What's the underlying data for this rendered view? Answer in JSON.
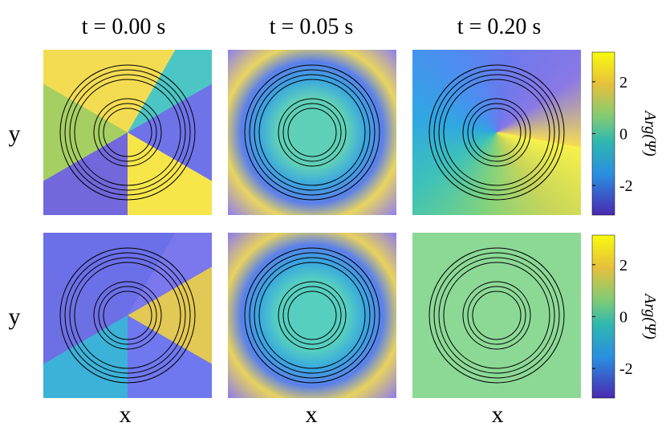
{
  "columns": [
    "t = 0.00 s",
    "t = 0.05 s",
    "t = 0.20 s"
  ],
  "ylabels": [
    "y",
    "y"
  ],
  "xlabels": [
    "x",
    "x",
    "x"
  ],
  "colorbars": [
    {
      "label": "Arg(Ψ)",
      "lim": [
        -3.14,
        3.14
      ],
      "ticks": [
        2,
        0,
        -2
      ]
    },
    {
      "label": "Arg(Ψ)",
      "lim": [
        -3.14,
        3.14
      ],
      "ticks": [
        2,
        0,
        -2
      ]
    }
  ]
}
